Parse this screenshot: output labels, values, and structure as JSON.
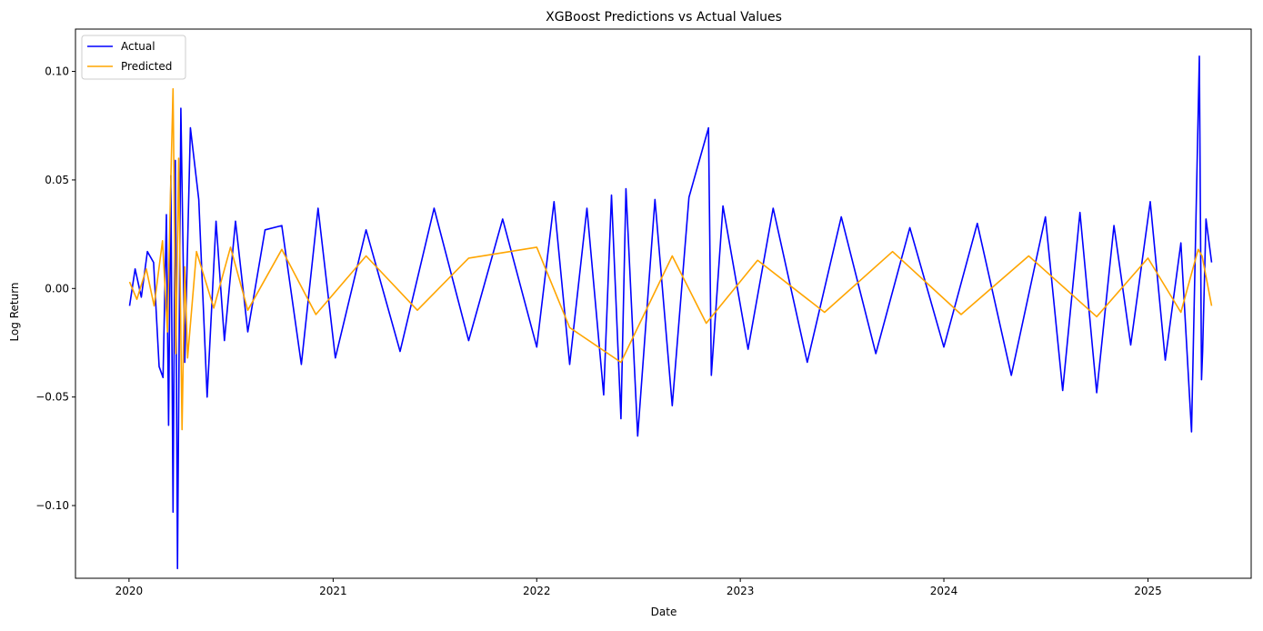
{
  "chart_data": {
    "type": "line",
    "title": "XGBoost Predictions vs Actual Values",
    "xlabel": "Date",
    "ylabel": "Log Return",
    "x_range": [
      "2019-09-27",
      "2025-07-05"
    ],
    "ylim": [
      -0.1335,
      0.1195
    ],
    "grid": false,
    "legend_position": "upper-left",
    "x_ticks": [
      {
        "value": "2020-01-01",
        "label": "2020"
      },
      {
        "value": "2021-01-01",
        "label": "2021"
      },
      {
        "value": "2022-01-01",
        "label": "2022"
      },
      {
        "value": "2023-01-01",
        "label": "2023"
      },
      {
        "value": "2024-01-01",
        "label": "2024"
      },
      {
        "value": "2025-01-01",
        "label": "2025"
      }
    ],
    "y_ticks": [
      {
        "value": 0.1,
        "label": "0.10"
      },
      {
        "value": 0.05,
        "label": "0.05"
      },
      {
        "value": 0.0,
        "label": "0.00"
      },
      {
        "value": -0.05,
        "label": "−0.05"
      },
      {
        "value": -0.1,
        "label": "−0.10"
      }
    ],
    "series": [
      {
        "name": "Actual",
        "color": "#0000ff",
        "x": [
          "2020-01-02",
          "2020-01-12",
          "2020-01-23",
          "2020-02-03",
          "2020-02-14",
          "2020-02-24",
          "2020-03-02",
          "2020-03-08",
          "2020-03-12",
          "2020-03-16",
          "2020-03-20",
          "2020-03-24",
          "2020-03-28",
          "2020-04-03",
          "2020-04-10",
          "2020-04-20",
          "2020-05-05",
          "2020-05-20",
          "2020-06-05",
          "2020-06-20",
          "2020-07-10",
          "2020-08-01",
          "2020-09-01",
          "2020-10-01",
          "2020-11-05",
          "2020-12-05",
          "2021-01-05",
          "2021-03-01",
          "2021-05-01",
          "2021-07-01",
          "2021-09-01",
          "2021-11-01",
          "2022-01-01",
          "2022-02-01",
          "2022-03-01",
          "2022-04-01",
          "2022-05-01",
          "2022-05-15",
          "2022-06-01",
          "2022-06-10",
          "2022-07-01",
          "2022-08-01",
          "2022-09-01",
          "2022-10-01",
          "2022-11-05",
          "2022-11-10",
          "2022-12-01",
          "2023-01-15",
          "2023-03-01",
          "2023-05-01",
          "2023-07-01",
          "2023-09-01",
          "2023-11-01",
          "2024-01-01",
          "2024-03-01",
          "2024-05-01",
          "2024-07-01",
          "2024-08-01",
          "2024-09-01",
          "2024-10-01",
          "2024-11-01",
          "2024-12-01",
          "2025-01-05",
          "2025-02-01",
          "2025-03-01",
          "2025-03-20",
          "2025-04-03",
          "2025-04-07",
          "2025-04-09",
          "2025-04-15",
          "2025-04-25"
        ],
        "values": [
          -0.008,
          0.009,
          -0.004,
          0.017,
          0.012,
          -0.036,
          -0.041,
          0.034,
          -0.063,
          0.052,
          -0.103,
          0.059,
          -0.129,
          0.083,
          -0.034,
          0.074,
          0.041,
          -0.05,
          0.031,
          -0.024,
          0.031,
          -0.02,
          0.027,
          0.029,
          -0.035,
          0.037,
          -0.032,
          0.027,
          -0.029,
          0.037,
          -0.024,
          0.032,
          -0.027,
          0.04,
          -0.035,
          0.037,
          -0.049,
          0.043,
          -0.06,
          0.046,
          -0.068,
          0.041,
          -0.054,
          0.042,
          0.074,
          -0.04,
          0.038,
          -0.028,
          0.037,
          -0.034,
          0.033,
          -0.03,
          0.028,
          -0.027,
          0.03,
          -0.04,
          0.033,
          -0.047,
          0.035,
          -0.048,
          0.029,
          -0.026,
          0.04,
          -0.033,
          0.021,
          -0.066,
          0.107,
          -0.042,
          -0.029,
          0.032,
          0.012
        ]
      },
      {
        "name": "Predicted",
        "color": "#ffa500",
        "x": [
          "2020-01-02",
          "2020-01-15",
          "2020-02-01",
          "2020-02-15",
          "2020-03-01",
          "2020-03-10",
          "2020-03-15",
          "2020-03-20",
          "2020-03-25",
          "2020-03-30",
          "2020-04-05",
          "2020-04-10",
          "2020-04-15",
          "2020-05-01",
          "2020-06-01",
          "2020-07-01",
          "2020-08-01",
          "2020-10-01",
          "2020-12-01",
          "2021-03-01",
          "2021-06-01",
          "2021-09-01",
          "2022-01-01",
          "2022-03-01",
          "2022-06-01",
          "2022-09-01",
          "2022-11-01",
          "2023-02-01",
          "2023-06-01",
          "2023-10-01",
          "2024-02-01",
          "2024-06-01",
          "2024-10-01",
          "2025-01-01",
          "2025-03-01",
          "2025-04-01",
          "2025-04-08",
          "2025-04-25"
        ],
        "values": [
          0.003,
          -0.005,
          0.009,
          -0.008,
          0.022,
          -0.02,
          0.04,
          0.092,
          -0.03,
          0.06,
          -0.065,
          0.01,
          -0.032,
          0.017,
          -0.009,
          0.019,
          -0.01,
          0.018,
          -0.012,
          0.015,
          -0.01,
          0.014,
          0.019,
          -0.018,
          -0.034,
          0.015,
          -0.016,
          0.013,
          -0.011,
          0.017,
          -0.012,
          0.015,
          -0.013,
          0.014,
          -0.011,
          0.018,
          0.015,
          -0.008
        ]
      }
    ]
  }
}
